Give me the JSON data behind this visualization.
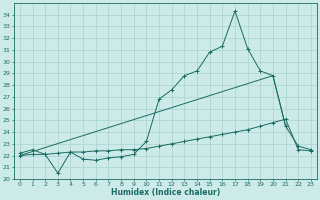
{
  "background_color": "#cceae7",
  "grid_color": "#aad4d0",
  "line_color": "#1a6b63",
  "x_label": "Humidex (Indice chaleur)",
  "xlim": [
    -0.5,
    23.5
  ],
  "ylim": [
    20,
    35
  ],
  "x_ticks": [
    0,
    1,
    2,
    3,
    4,
    5,
    6,
    7,
    8,
    9,
    10,
    11,
    12,
    13,
    14,
    15,
    16,
    17,
    18,
    19,
    20,
    21,
    22,
    23
  ],
  "y_ticks": [
    20,
    21,
    22,
    23,
    24,
    25,
    26,
    27,
    28,
    29,
    30,
    31,
    32,
    33,
    34
  ],
  "series1_x": [
    0,
    1,
    2,
    3,
    4,
    5,
    6,
    7,
    8,
    9,
    10,
    11,
    12,
    13,
    14,
    15,
    16,
    17,
    18,
    19,
    20,
    21,
    22,
    23
  ],
  "series1_y": [
    22.2,
    22.5,
    22.1,
    20.5,
    22.3,
    21.7,
    21.6,
    21.8,
    21.9,
    22.1,
    23.2,
    26.8,
    27.6,
    28.8,
    29.2,
    30.8,
    31.3,
    34.3,
    31.1,
    29.2,
    28.8,
    24.5,
    22.8,
    22.5
  ],
  "series2_x": [
    0,
    1,
    2,
    3,
    4,
    5,
    6,
    7,
    8,
    9,
    10,
    11,
    12,
    13,
    14,
    15,
    16,
    17,
    18,
    19,
    20,
    21,
    22,
    23
  ],
  "series2_y": [
    22.0,
    22.1,
    22.1,
    22.2,
    22.3,
    22.3,
    22.4,
    22.4,
    22.5,
    22.5,
    22.6,
    22.8,
    23.0,
    23.2,
    23.4,
    23.6,
    23.8,
    24.0,
    24.2,
    24.5,
    24.8,
    25.1,
    22.5,
    22.4
  ],
  "series3_x": [
    0,
    20,
    21
  ],
  "series3_y": [
    22.0,
    28.8,
    24.5
  ]
}
